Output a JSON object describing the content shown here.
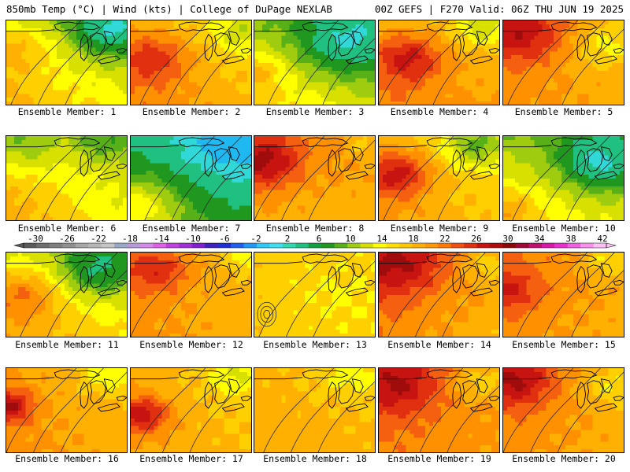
{
  "header": {
    "left": "850mb Temp (°C) | Wind (kts) | College of DuPage NEXLAB",
    "right": "00Z GEFS | F270 Valid: 06Z THU JUN 19 2025"
  },
  "panel_label_prefix": "Ensemble Member: ",
  "members": [
    {
      "label": "Ensemble Member: 1",
      "number": 1,
      "base": 16,
      "gradient": [
        -6,
        4
      ],
      "blobs": [
        [
          0.85,
          0.1,
          0.28,
          -10
        ],
        [
          0.1,
          0.35,
          0.3,
          4
        ]
      ]
    },
    {
      "label": "Ensemble Member: 2",
      "number": 2,
      "base": 19,
      "gradient": [
        -3,
        3
      ],
      "blobs": [
        [
          0.2,
          0.45,
          0.3,
          6
        ],
        [
          0.9,
          0.15,
          0.2,
          -4
        ]
      ]
    },
    {
      "label": "Ensemble Member: 3",
      "number": 3,
      "base": 14,
      "gradient": [
        -7,
        5
      ],
      "blobs": [
        [
          0.75,
          0.25,
          0.35,
          -8
        ],
        [
          0.05,
          0.6,
          0.2,
          4
        ]
      ]
    },
    {
      "label": "Ensemble Member: 4",
      "number": 4,
      "base": 20,
      "gradient": [
        -3,
        2
      ],
      "blobs": [
        [
          0.25,
          0.45,
          0.28,
          7
        ],
        [
          0.85,
          0.1,
          0.2,
          -5
        ]
      ]
    },
    {
      "label": "Ensemble Member: 5",
      "number": 5,
      "base": 19,
      "gradient": [
        0,
        2
      ],
      "blobs": [
        [
          0.15,
          0.15,
          0.35,
          7
        ],
        [
          0.85,
          0.3,
          0.25,
          -4
        ]
      ]
    },
    {
      "label": "Ensemble Member: 6",
      "number": 6,
      "base": 16,
      "gradient": [
        -3,
        5
      ],
      "blobs": [
        [
          0.1,
          0.05,
          0.35,
          -6
        ],
        [
          0.8,
          0.05,
          0.25,
          -4
        ]
      ]
    },
    {
      "label": "Ensemble Member: 7",
      "number": 7,
      "base": 8,
      "gradient": [
        -8,
        6
      ],
      "blobs": [
        [
          0.8,
          0.15,
          0.35,
          -6
        ],
        [
          0.1,
          0.8,
          0.3,
          5
        ]
      ]
    },
    {
      "label": "Ensemble Member: 8",
      "number": 8,
      "base": 18,
      "gradient": [
        2,
        1
      ],
      "blobs": [
        [
          0.08,
          0.3,
          0.3,
          8
        ],
        [
          0.9,
          0.1,
          0.15,
          -3
        ]
      ]
    },
    {
      "label": "Ensemble Member: 9",
      "number": 9,
      "base": 18,
      "gradient": [
        -2,
        3
      ],
      "blobs": [
        [
          0.15,
          0.45,
          0.28,
          8
        ],
        [
          0.8,
          0.1,
          0.25,
          -7
        ]
      ]
    },
    {
      "label": "Ensemble Member: 10",
      "number": 10,
      "base": 14,
      "gradient": [
        -6,
        3
      ],
      "blobs": [
        [
          0.8,
          0.3,
          0.3,
          -10
        ],
        [
          0.05,
          0.85,
          0.25,
          4
        ]
      ]
    },
    {
      "label": "Ensemble Member: 11",
      "number": 11,
      "base": 17,
      "gradient": [
        -6,
        3
      ],
      "blobs": [
        [
          0.75,
          0.2,
          0.3,
          -8
        ],
        [
          0.15,
          0.5,
          0.3,
          6
        ]
      ]
    },
    {
      "label": "Ensemble Member: 12",
      "number": 12,
      "base": 19,
      "gradient": [
        -1,
        2
      ],
      "blobs": [
        [
          0.2,
          0.2,
          0.28,
          6
        ],
        [
          0.95,
          0.05,
          0.15,
          -4
        ]
      ]
    },
    {
      "label": "Ensemble Member: 13",
      "number": 13,
      "base": 16,
      "gradient": [
        0,
        1
      ],
      "blobs": [
        [
          0.6,
          0.5,
          0.4,
          -1
        ]
      ]
    },
    {
      "label": "Ensemble Member: 14",
      "number": 14,
      "base": 19,
      "gradient": [
        2,
        3
      ],
      "blobs": [
        [
          0.15,
          0.15,
          0.35,
          6
        ],
        [
          0.9,
          0.15,
          0.2,
          -4
        ]
      ]
    },
    {
      "label": "Ensemble Member: 15",
      "number": 15,
      "base": 19,
      "gradient": [
        1,
        2
      ],
      "blobs": [
        [
          0.05,
          0.45,
          0.25,
          5
        ],
        [
          0.85,
          0.1,
          0.2,
          -4
        ]
      ]
    },
    {
      "label": "Ensemble Member: 16",
      "number": 16,
      "base": 19,
      "gradient": [
        -1,
        2
      ],
      "blobs": [
        [
          0.02,
          0.45,
          0.2,
          8
        ],
        [
          0.85,
          0.05,
          0.25,
          -4
        ]
      ]
    },
    {
      "label": "Ensemble Member: 17",
      "number": 17,
      "base": 18,
      "gradient": [
        -1,
        2
      ],
      "blobs": [
        [
          0.1,
          0.55,
          0.22,
          8
        ],
        [
          0.85,
          0.1,
          0.2,
          -4
        ]
      ]
    },
    {
      "label": "Ensemble Member: 18",
      "number": 18,
      "base": 18,
      "gradient": [
        -1,
        1
      ],
      "blobs": [
        [
          0.8,
          0.1,
          0.25,
          -3
        ]
      ]
    },
    {
      "label": "Ensemble Member: 19",
      "number": 19,
      "base": 20,
      "gradient": [
        1,
        2
      ],
      "blobs": [
        [
          0.15,
          0.2,
          0.32,
          6
        ],
        [
          0.85,
          0.15,
          0.25,
          -4
        ]
      ]
    },
    {
      "label": "Ensemble Member: 20",
      "number": 20,
      "base": 19,
      "gradient": [
        1,
        2
      ],
      "blobs": [
        [
          0.1,
          0.15,
          0.3,
          7
        ],
        [
          0.9,
          0.2,
          0.25,
          -4
        ]
      ]
    }
  ],
  "colorbar": {
    "labels": [
      "-30",
      "-26",
      "-22",
      "-18",
      "-14",
      "-10",
      "-6",
      "-2",
      "2",
      "6",
      "10",
      "14",
      "18",
      "22",
      "26",
      "30",
      "34",
      "38",
      "42"
    ],
    "colors": [
      "#5a5a5a",
      "#6e6e6e",
      "#7f7f7f",
      "#909090",
      "#a6a6a6",
      "#b7b7b7",
      "#c6c6c6",
      "#9aa8c8",
      "#b89ad8",
      "#d48ae8",
      "#e060e8",
      "#c040e0",
      "#a030d8",
      "#8020d0",
      "#4020c0",
      "#2030d8",
      "#2060f0",
      "#2098f8",
      "#30c8f8",
      "#40e0f0",
      "#30d8b0",
      "#20c080",
      "#10a040",
      "#209820",
      "#58b018",
      "#a0cc10",
      "#d8e000",
      "#ffff00",
      "#ffe000",
      "#ffc800",
      "#ffb000",
      "#ff9800",
      "#ff7800",
      "#f05010",
      "#e03010",
      "#c81410",
      "#b00c0c",
      "#8c0808",
      "#a00838",
      "#c01070",
      "#d818a8",
      "#e830d0",
      "#f060e0",
      "#f890ec",
      "#fcc0f4"
    ],
    "range": [
      -30,
      42
    ]
  },
  "temperature_scale": {
    "stops": [
      [
        -10,
        "#2060f0"
      ],
      [
        -6,
        "#20b8f0"
      ],
      [
        -2,
        "#30d8d8"
      ],
      [
        2,
        "#20c080"
      ],
      [
        6,
        "#209820"
      ],
      [
        8,
        "#58b018"
      ],
      [
        10,
        "#a0cc10"
      ],
      [
        12,
        "#d8e000"
      ],
      [
        14,
        "#ffff00"
      ],
      [
        16,
        "#ffd000"
      ],
      [
        18,
        "#ffb000"
      ],
      [
        20,
        "#ff9000"
      ],
      [
        22,
        "#f46010"
      ],
      [
        24,
        "#e03010"
      ],
      [
        26,
        "#c81410"
      ],
      [
        28,
        "#a00c0c"
      ]
    ]
  },
  "map_style": {
    "coastline_color": "#000000",
    "contour_color": "#2a2a2a"
  }
}
